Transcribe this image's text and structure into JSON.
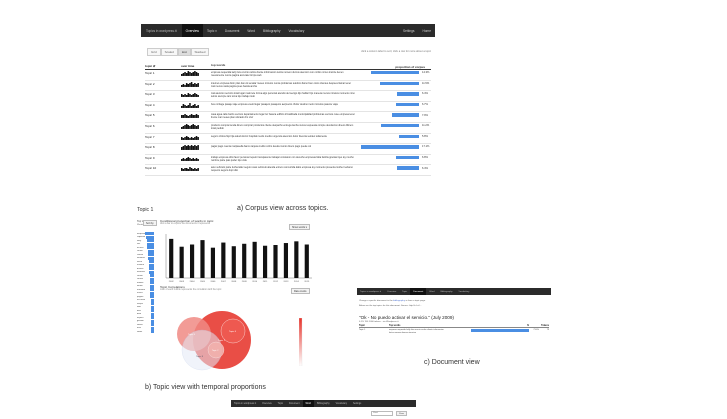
{
  "panel_a": {
    "navbar": {
      "brand": "Topics in wordpress.tt",
      "items": [
        "Overview",
        "Topic ▾",
        "Document",
        "Word",
        "Bibliography",
        "Vocabulary"
      ],
      "active_index": 0,
      "right_items": [
        "Settings",
        "Home"
      ]
    },
    "view_toggles": [
      "Grid",
      "Scaled",
      "List",
      "Stacked"
    ],
    "active_toggle": 2,
    "hint": "click a column label to sort; click a row for more about a topic",
    "columns": [
      "topic ⇵",
      "over time",
      "top words",
      "proportion of corpus"
    ],
    "rows": [
      {
        "topic": "Topic 1",
        "words": "empresa requerida kelly luis ocurrio carlos cliente informacion lectra numero durnos atencion con confio correo tramite tienen nuevamente nunca pagina accurate fornpa web",
        "proportion": 0.143,
        "pct": "14.3%",
        "spark": [
          2,
          3,
          4,
          3,
          5,
          4,
          3,
          4,
          5,
          4,
          3
        ]
      },
      {
        "topic": "Topic 2",
        "words": "internet empresa dtom plan dan ok senalar meses minutos nunca problemas telefono llamo bien costo clientes despues llamar tener mal menos nada pagina pues banda ancha",
        "proportion": 0.115,
        "pct": "11.5%",
        "spark": [
          2,
          3,
          2,
          4,
          3,
          4,
          5,
          3,
          4,
          3,
          4
        ]
      },
      {
        "topic": "Topic 3",
        "words": "mal atencion servicio local lugar malo tele forma algo personal atendio del sectgo dijo hablar hijo manera menos minutos momento nino telcos siempre tam toma tipo trabajo todo",
        "proportion": 0.064,
        "pct": "6.4%",
        "spark": [
          3,
          2,
          3,
          2,
          4,
          3,
          2,
          3,
          4,
          3,
          2
        ]
      },
      {
        "topic": "Topic 4",
        "words": "bus corriage pasaje viaje empresa vuelo llegar pasajero pasajeros aerpuerto chofer destino metro minutos paiente viaja",
        "proportion": 0.067,
        "pct": "6.7%",
        "spark": [
          2,
          4,
          3,
          2,
          3,
          5,
          2,
          3,
          4,
          2,
          3
        ]
      },
      {
        "topic": "Topic 5",
        "words": "casa agua calle barrio vecinos departamento lugar luz basura edificio trimatlizada municipalidad problemas vecinos cuse empresa tener frente mar meses plan ubicado chs vivir",
        "proportion": 0.079,
        "pct": "7.9%",
        "spark": [
          3,
          3,
          4,
          3,
          2,
          3,
          4,
          3,
          3,
          4,
          3
        ]
      },
      {
        "topic": "Topic 6",
        "words": "producto compra tienda dinero comprar productos cliente despacho entrega tienha nunca respuesta compre devolucion dinero dificem local pedido",
        "proportion": 0.112,
        "pct": "11.2%",
        "spark": [
          2,
          3,
          4,
          5,
          4,
          3,
          4,
          5,
          4,
          3,
          4
        ]
      },
      {
        "topic": "Topic 7",
        "words": "seguro clinica hijo hija salud doctor hospital medio medico urgencia atencion dutor licencia veloleo todamente",
        "proportion": 0.058,
        "pct": "5.8%",
        "spark": [
          3,
          2,
          3,
          4,
          3,
          2,
          3,
          2,
          3,
          4,
          3
        ]
      },
      {
        "topic": "Topic 8",
        "words": "pagar pago cuenta marpasella banco tarjeta credito cobro deuda monto dinero pago puede cul",
        "proportion": 0.171,
        "pct": "17.1%",
        "spark": [
          3,
          4,
          5,
          4,
          5,
          4,
          5,
          4,
          5,
          4,
          5
        ]
      },
      {
        "topic": "Topic 9",
        "words": "trabajo empresa dtrio favor persona trepelo transparente trabajar constaron con derecho empresas falta familia gracias trjes ley mucho nombre parte pais poder tipo vida",
        "proportion": 0.068,
        "pct": "6.8%",
        "spark": [
          2,
          3,
          2,
          3,
          4,
          3,
          2,
          3,
          2,
          3,
          2
        ]
      },
      {
        "topic": "Topic 10",
        "words": "auto vehiculo parte fecha taller seguro caso vehiculo atienda entrero concurrida dabo empresa ley momento presenta mother reclamo respecto seguro dopt dito",
        "proportion": 0.064,
        "pct": "6.4%",
        "spark": [
          3,
          2,
          3,
          3,
          2,
          4,
          3,
          2,
          3,
          2,
          3
        ]
      }
    ]
  },
  "caption_a": "a) Corpus view across topics.",
  "panel_b": {
    "topic_title": "Topic 1",
    "top_words_label": "Top words",
    "toggle_labels": [
      "Words",
      "Weight"
    ],
    "sort_button": "Sort by",
    "words": [
      "empresa",
      "requerida",
      "kelly",
      "luis",
      "ocurrio",
      "carlos",
      "cliente",
      "informacion",
      "lectra",
      "numero",
      "durnos",
      "atencion",
      "confio",
      "correo",
      "tramite",
      "tienen",
      "nuevamente",
      "nunca",
      "pagina",
      "accurate",
      "fornpa",
      "web",
      "bien",
      "dato",
      "espera",
      "gestion",
      "llamar",
      "mes",
      "saber"
    ],
    "word_weights": [
      1.0,
      0.9,
      0.82,
      0.78,
      0.74,
      0.7,
      0.66,
      0.62,
      0.6,
      0.57,
      0.55,
      0.52,
      0.5,
      0.48,
      0.46,
      0.44,
      0.42,
      0.41,
      0.4,
      0.38,
      0.37,
      0.36,
      0.35,
      0.34,
      0.33,
      0.32,
      0.31,
      0.3,
      0.29
    ],
    "chart_title": "Conditional proportion of words in topic",
    "chart_sub": "click a bar to explore the documents it represents",
    "chart_button": "Show words ▾",
    "corr_title": "Topic Correlations",
    "corr_sub": "color of each bubble represents the correlation with the topic",
    "corr_button": "Raw counts",
    "bubble_labels": [
      "Topic 1",
      "Topic 4",
      "Topic 8",
      "Topic 6",
      "Topic 2"
    ]
  },
  "chart_data": {
    "type": "bar",
    "title": "Conditional proportion of words in topic",
    "categories": [
      "2002",
      "2003",
      "2004",
      "2005",
      "2006",
      "2007",
      "2008",
      "2009",
      "2010",
      "2011",
      "2012",
      "2013",
      "2014",
      "2015"
    ],
    "values": [
      0.16,
      0.128,
      0.137,
      0.155,
      0.124,
      0.145,
      0.13,
      0.14,
      0.148,
      0.132,
      0.135,
      0.143,
      0.15,
      0.137
    ],
    "ylim": [
      0,
      0.18
    ]
  },
  "caption_b": "b) Topic view with temporal proportions",
  "panel_c": {
    "navbar": [
      "Topics in wordpress.tt",
      "Overview",
      "Topic",
      "Document",
      "Word",
      "Bibliography",
      "Vocabulary"
    ],
    "active_index": 3,
    "line1_prefix": "Change a specific document in the",
    "line1_link": "bibliography",
    "line1_suffix": "or from a topic page.",
    "line2": "Below are the top topics for this document. Source: http://c-l.ct/...",
    "doc_title": "\"Ok - No puedo activar el servicio.\" (July 2009)",
    "doc_meta": "0.1% 700 1000 tokens · via Wordpress.tt",
    "columns": [
      "Topic",
      "Top words",
      "%",
      "Tokens"
    ],
    "row": {
      "topic": "Topic 1",
      "words": "empresa requerida kelly luis ocurrio carlos cliente informacion lectra numero durnos atencion",
      "proportion": 0.73,
      "pct": "73.0%",
      "tokens": "73"
    }
  },
  "caption_c": "c) Document view",
  "nav_bottom": {
    "items": [
      "Topics in wordpress.tt",
      "Overview",
      "Topic",
      "Document",
      "Word",
      "Bibliography",
      "Vocabulary",
      "Settings"
    ],
    "active_index": 4,
    "input_placeholder": "Word",
    "button": "Show"
  }
}
